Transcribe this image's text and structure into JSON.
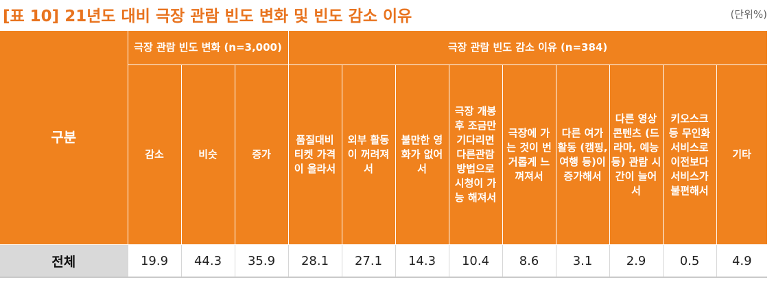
{
  "title": "[표 10] 21년도 대비 극장 관람 빈도 변화 및 빈도 감소 이유",
  "unit": "(단위%)",
  "table": {
    "corner": "구분",
    "group1": "극장 관람 빈도 변화 (n=3,000)",
    "group2": "극장 관람 빈도 감소 이유 (n=384)",
    "columns": [
      "감소",
      "비슷",
      "증가",
      "품질대비 티켓 가격이 올라서",
      "외부 활동이 꺼려져서",
      "불만한 영화가 없어서",
      "극장 개봉 후 조금만 기다리면 다른관람 방법으로 시청이 가능 해져서",
      "극장에 가는 것이 번거롭게 느껴져서",
      "다른 여가활동 (캠핑, 여행 등)이 증가해서",
      "다른 영상 콘텐츠 (드라마, 예능 등) 관람 시간이 늘어서",
      "키오스크 등 무인화 서비스로 이전보다 서비스가 불편해서",
      "기타"
    ],
    "row_label": "전체",
    "values": [
      "19.9",
      "44.3",
      "35.9",
      "28.1",
      "27.1",
      "14.3",
      "10.4",
      "8.6",
      "3.1",
      "2.9",
      "0.5",
      "4.9"
    ]
  }
}
